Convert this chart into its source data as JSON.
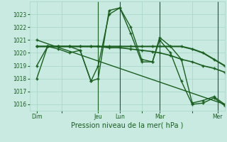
{
  "bg_color": "#c8eae0",
  "grid_color": "#a8d4c8",
  "line_color": "#1a5e20",
  "xlabel": "Pression niveau de la mer( hPa )",
  "ylim": [
    1015.5,
    1024.0
  ],
  "yticks": [
    1016,
    1017,
    1018,
    1019,
    1020,
    1021,
    1022,
    1023
  ],
  "xlim": [
    0,
    108
  ],
  "day_labels": [
    "Dim",
    "",
    "Jeu",
    "Lun",
    "",
    "Mar",
    "",
    "Mer"
  ],
  "day_positions": [
    4,
    18,
    38,
    50,
    62,
    72,
    90,
    104
  ],
  "vlines": [
    38,
    50,
    72,
    104
  ],
  "series": [
    {
      "x": [
        4,
        10,
        16,
        22,
        28,
        34,
        38,
        44,
        50,
        56,
        62,
        68,
        72,
        78,
        84,
        90,
        96,
        102,
        108
      ],
      "y": [
        1020.5,
        1020.5,
        1020.5,
        1020.5,
        1020.5,
        1020.5,
        1020.5,
        1020.4,
        1020.4,
        1020.3,
        1020.2,
        1020.1,
        1020.0,
        1019.8,
        1019.5,
        1019.3,
        1019.0,
        1018.8,
        1018.5
      ],
      "lw": 1.2,
      "ls": "-"
    },
    {
      "x": [
        4,
        10,
        16,
        22,
        28,
        34,
        38,
        44,
        50,
        56,
        62,
        68,
        72,
        78,
        84,
        90,
        96,
        102,
        108
      ],
      "y": [
        1019.0,
        1020.5,
        1020.5,
        1020.5,
        1020.2,
        1017.8,
        1018.0,
        1023.3,
        1023.5,
        1022.0,
        1019.5,
        1019.3,
        1021.2,
        1020.5,
        1019.5,
        1016.1,
        1016.3,
        1016.6,
        1016.0
      ],
      "lw": 1.0,
      "ls": "-"
    },
    {
      "x": [
        4,
        10,
        16,
        22,
        28,
        34,
        38,
        44,
        50,
        56,
        62,
        68,
        72,
        78,
        84,
        90,
        96,
        102,
        108
      ],
      "y": [
        1018.0,
        1020.5,
        1020.3,
        1020.0,
        1020.2,
        1017.8,
        1019.0,
        1023.0,
        1023.5,
        1021.5,
        1019.3,
        1019.3,
        1021.0,
        1020.0,
        1017.8,
        1016.0,
        1016.1,
        1016.5,
        1015.9
      ],
      "lw": 1.0,
      "ls": "-"
    },
    {
      "x": [
        4,
        10,
        16,
        22,
        28,
        34,
        38,
        44,
        50,
        56,
        62,
        68,
        72,
        78,
        84,
        90,
        96,
        102,
        108
      ],
      "y": [
        1020.5,
        1020.5,
        1020.5,
        1020.5,
        1020.5,
        1020.5,
        1020.5,
        1020.5,
        1020.5,
        1020.5,
        1020.5,
        1020.5,
        1020.5,
        1020.5,
        1020.5,
        1020.3,
        1020.0,
        1019.5,
        1019.0
      ],
      "lw": 1.5,
      "ls": "-"
    },
    {
      "x": [
        4,
        108
      ],
      "y": [
        1021.0,
        1016.0
      ],
      "lw": 1.0,
      "ls": "-"
    }
  ]
}
